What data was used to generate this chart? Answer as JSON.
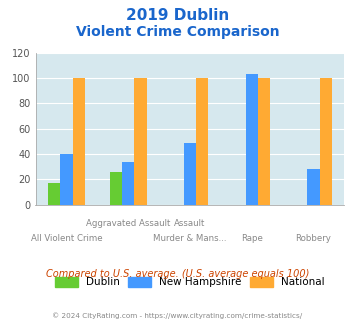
{
  "title_line1": "2019 Dublin",
  "title_line2": "Violent Crime Comparison",
  "categories": [
    "All Violent Crime",
    "Aggravated Assault",
    "Murder & Mans...",
    "Rape",
    "Robbery"
  ],
  "label_top": [
    "",
    "Aggravated Assault",
    "Assault",
    "",
    ""
  ],
  "label_bot": [
    "All Violent Crime",
    "",
    "Murder & Mans...",
    "Rape",
    "Robbery"
  ],
  "dublin": [
    17,
    26,
    0,
    0,
    0
  ],
  "new_hampshire": [
    40,
    34,
    49,
    103,
    28
  ],
  "national": [
    100,
    100,
    100,
    100,
    100
  ],
  "dublin_color": "#66cc33",
  "nh_color": "#4499ff",
  "national_color": "#ffaa33",
  "bg_color": "#d6e8ee",
  "ylim": [
    0,
    120
  ],
  "yticks": [
    0,
    20,
    40,
    60,
    80,
    100,
    120
  ],
  "footnote": "Compared to U.S. average. (U.S. average equals 100)",
  "copyright": "© 2024 CityRating.com - https://www.cityrating.com/crime-statistics/",
  "title_color": "#1a66cc",
  "footnote_color": "#cc4400",
  "copyright_color": "#888888",
  "legend_labels": [
    "Dublin",
    "New Hampshire",
    "National"
  ]
}
